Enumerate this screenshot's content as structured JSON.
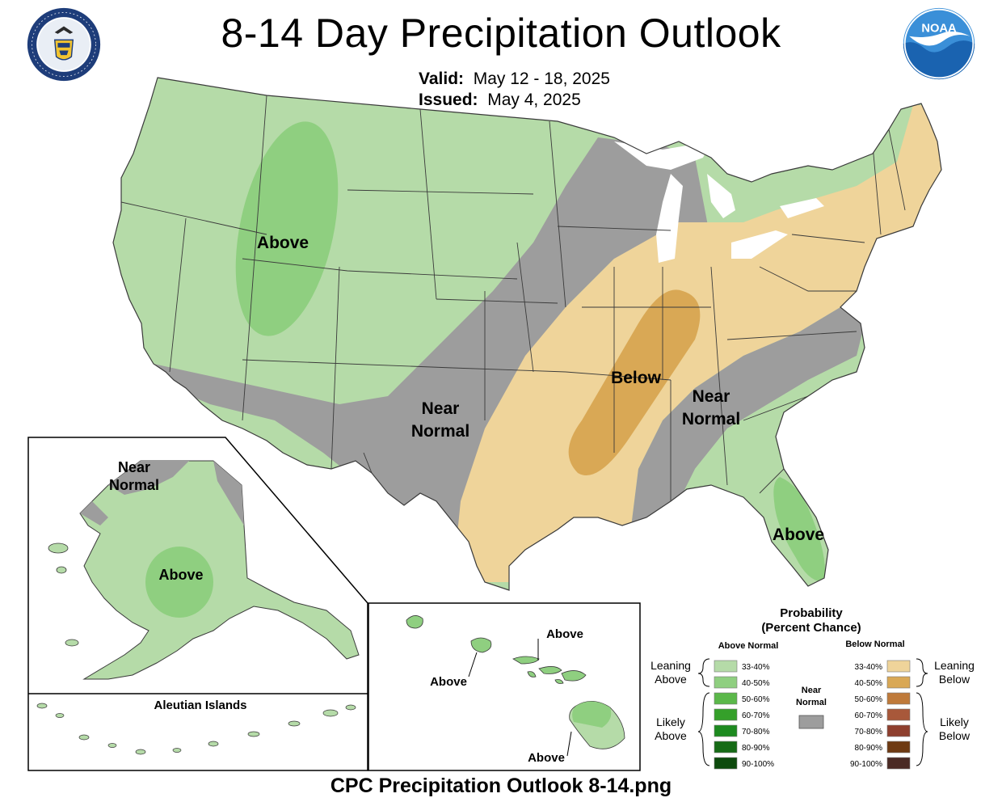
{
  "title": "8-14 Day Precipitation Outlook",
  "valid": {
    "label": "Valid:",
    "value": "May 12 - 18, 2025"
  },
  "issued": {
    "label": "Issued:",
    "value": "May 4, 2025"
  },
  "caption": "CPC Precipitation Outlook 8-14.png",
  "logos": {
    "left": "doc-seal-icon",
    "right": "noaa-logo-icon",
    "noaa_text": "NOAA"
  },
  "map_labels": {
    "above_west": "Above",
    "near_normal_central_1": "Near",
    "near_normal_central_2": "Normal",
    "below": "Below",
    "near_normal_east_1": "Near",
    "near_normal_east_2": "Normal",
    "above_florida": "Above"
  },
  "alaska": {
    "near_normal_1": "Near",
    "near_normal_2": "Normal",
    "above": "Above",
    "aleutian": "Aleutian Islands"
  },
  "hawaii": {
    "above_1": "Above",
    "above_2": "Above",
    "above_3": "Above"
  },
  "legend": {
    "title_1": "Probability",
    "title_2": "(Percent Chance)",
    "above_header": "Above Normal",
    "below_header": "Below Normal",
    "leaning_above_1": "Leaning",
    "leaning_above_2": "Above",
    "likely_above_1": "Likely",
    "likely_above_2": "Above",
    "leaning_below_1": "Leaning",
    "leaning_below_2": "Below",
    "likely_below_1": "Likely",
    "likely_below_2": "Below",
    "near_1": "Near",
    "near_2": "Normal",
    "above_scale": [
      {
        "label": "33-40%",
        "color": "#b5dba8"
      },
      {
        "label": "40-50%",
        "color": "#8fcf80"
      },
      {
        "label": "50-60%",
        "color": "#5bb84a"
      },
      {
        "label": "60-70%",
        "color": "#35a02a"
      },
      {
        "label": "70-80%",
        "color": "#1d8a1f"
      },
      {
        "label": "80-90%",
        "color": "#166b16"
      },
      {
        "label": "90-100%",
        "color": "#0d4a0d"
      }
    ],
    "below_scale": [
      {
        "label": "33-40%",
        "color": "#efd49a"
      },
      {
        "label": "40-50%",
        "color": "#d9a855"
      },
      {
        "label": "50-60%",
        "color": "#bf7a3a"
      },
      {
        "label": "60-70%",
        "color": "#a8583a"
      },
      {
        "label": "70-80%",
        "color": "#8e3f2e"
      },
      {
        "label": "80-90%",
        "color": "#6e3a12"
      },
      {
        "label": "90-100%",
        "color": "#4a2a24"
      }
    ],
    "near_color": "#9d9d9d"
  },
  "colors": {
    "above_light": "#b5dba8",
    "above_mid": "#8fcf80",
    "below_light": "#efd49a",
    "below_mid": "#d9a855",
    "near": "#9d9d9d",
    "water": "#ffffff",
    "boundary": "#3a3a3a"
  }
}
